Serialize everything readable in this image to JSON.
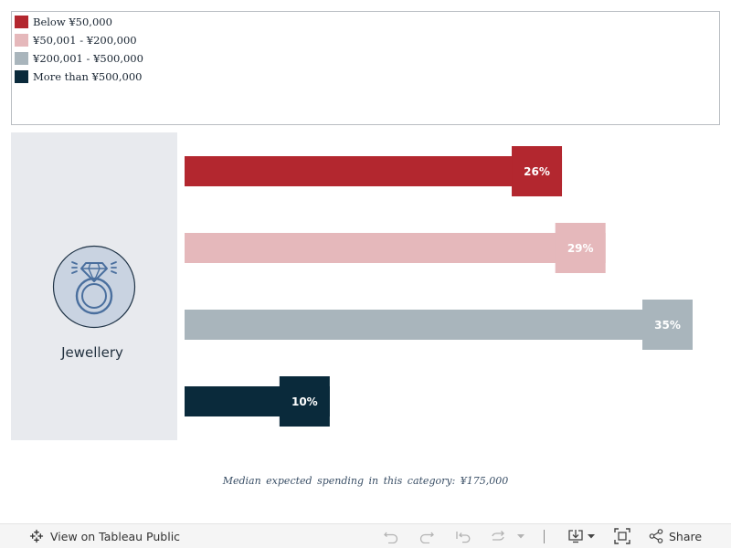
{
  "legend": {
    "items": [
      {
        "label": "Below ¥50,000",
        "color": "#b3272f"
      },
      {
        "label": "¥50,001 - ¥200,000",
        "color": "#e5b8bb"
      },
      {
        "label": "¥200,001 - ¥500,000",
        "color": "#a9b5bc"
      },
      {
        "label": "More than ¥500,000",
        "color": "#0a2a3b"
      }
    ]
  },
  "category": {
    "label": "Jewellery",
    "icon": "ring-icon"
  },
  "chart_data": {
    "type": "bar",
    "orientation": "horizontal",
    "category": "Jewellery",
    "categories": [
      "Below ¥50,000",
      "¥50,001 - ¥200,000",
      "¥200,001 - ¥500,000",
      "More than ¥500,000"
    ],
    "values": [
      26,
      29,
      35,
      10
    ],
    "data_labels": [
      "26%",
      "29%",
      "35%",
      "10%"
    ],
    "colors": [
      "#b3272f",
      "#e5b8bb",
      "#a9b5bc",
      "#0a2a3b"
    ],
    "label_text_color": "#ffffff",
    "xlim": [
      0,
      35
    ],
    "grid": false,
    "legend_position": "top-left"
  },
  "median_note": "Median expected spending in this category: ¥175,000",
  "footer": {
    "view_label": "View on Tableau Public",
    "share_label": "Share",
    "icons": [
      "tableau-logo-icon",
      "undo-icon",
      "redo-icon",
      "revert-icon",
      "refresh-icon",
      "pause-icon",
      "download-icon",
      "fullscreen-icon",
      "share-icon"
    ]
  }
}
